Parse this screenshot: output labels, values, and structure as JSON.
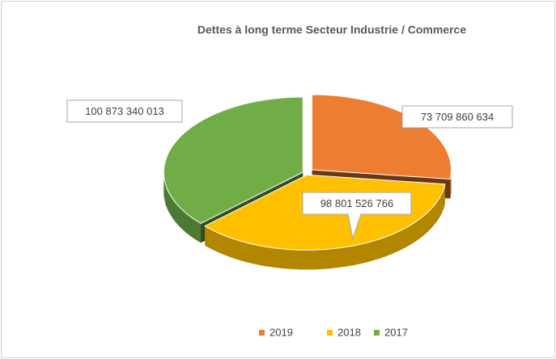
{
  "chart_data": {
    "type": "pie3d",
    "title": "Dettes à long terme Secteur Industrie / Commerce",
    "categories": [
      "2019",
      "2018",
      "2017"
    ],
    "values": [
      73709860634,
      98801526766,
      100873340013
    ],
    "value_labels": [
      "73 709 860 634",
      "98 801 526 766",
      "100 873 340 013"
    ],
    "colors": [
      "#ed7d31",
      "#ffc000",
      "#70ad47"
    ],
    "legend": "bottom"
  }
}
